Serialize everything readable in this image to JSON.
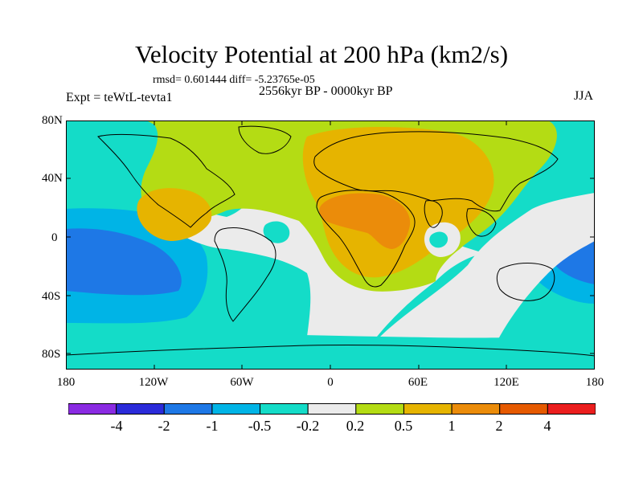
{
  "figure": {
    "title": "Velocity Potential at 200 hPa (km2/s)",
    "stats_line": "rmsd= 0.601444 diff= -5.23765e-05",
    "period_line": "2556kyr BP - 0000kyr BP",
    "experiment": "Expt = teWtL-tevta1",
    "season": "JJA"
  },
  "axes": {
    "y_ticks": [
      "80N",
      "40N",
      "0",
      "40S",
      "80S"
    ],
    "x_ticks": [
      "180",
      "120W",
      "60W",
      "0",
      "60E",
      "120E",
      "180"
    ]
  },
  "colorbar": {
    "colors": [
      "#8a2be2",
      "#2b2bd9",
      "#1e78e6",
      "#00b4e6",
      "#14dcc8",
      "#ebebeb",
      "#b4dc14",
      "#e6b400",
      "#eb8c0a",
      "#e65a00",
      "#eb1e1e"
    ],
    "labels": [
      "-4",
      "-2",
      "-1",
      "-0.5",
      "-0.2",
      "0.2",
      "0.5",
      "1",
      "2",
      "4"
    ]
  },
  "field_colors": {
    "pos_02": "#b4dc14",
    "pos_05": "#e6b400",
    "pos_1": "#eb8c0a",
    "neutral": "#ebebeb",
    "neg_02": "#14dcc8",
    "neg_05": "#00b4e6",
    "neg_1": "#1e78e6"
  }
}
